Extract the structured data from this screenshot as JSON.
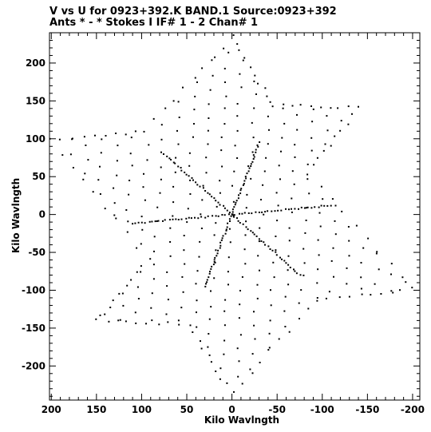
{
  "header": {
    "title_line1": "V vs U for 0923+392.K BAND.1   Source:0923+392",
    "title_line2": "Ants * - *    Stokes I  IF# 1 - 2  Chan# 1"
  },
  "chart_data": {
    "type": "scatter",
    "xlabel": "Kilo Wavlngth",
    "ylabel": "Kilo Wavlngth",
    "xlim": [
      202,
      -208
    ],
    "ylim": [
      -245,
      240
    ],
    "x_reversed": true,
    "x_ticks": [
      200,
      150,
      100,
      50,
      0,
      -50,
      -100,
      -150,
      -200
    ],
    "x_tick_labels": [
      "200",
      "150",
      "100",
      "50",
      "0",
      "-50",
      "-100",
      "-150",
      "-200"
    ],
    "y_ticks": [
      200,
      150,
      100,
      50,
      0,
      -50,
      -100,
      -150,
      -200
    ],
    "y_tick_labels": [
      "200",
      "150",
      "100",
      "50",
      "0",
      "-50",
      "-100",
      "-150",
      "-200"
    ],
    "grid": false,
    "point_color": "#000000",
    "description": "Hexagram (six-pointed star) uv-coverage with three dense radial lines through origin",
    "star_vertices": [
      [
        0,
        235
      ],
      [
        -45,
        145
      ],
      [
        -140,
        140
      ],
      [
        -85,
        55
      ],
      [
        -200,
        -98
      ],
      [
        -95,
        -112
      ],
      [
        0,
        -235
      ],
      [
        48,
        -145
      ],
      [
        150,
        -140
      ],
      [
        92,
        -60
      ],
      [
        200,
        98
      ],
      [
        95,
        110
      ]
    ],
    "dense_lines": [
      {
        "from": [
          75,
          80
        ],
        "to": [
          -75,
          -80
        ]
      },
      {
        "from": [
          -30,
          95
        ],
        "to": [
          30,
          -95
        ]
      },
      {
        "from": [
          110,
          -12
        ],
        "to": [
          -110,
          12
        ]
      }
    ]
  }
}
